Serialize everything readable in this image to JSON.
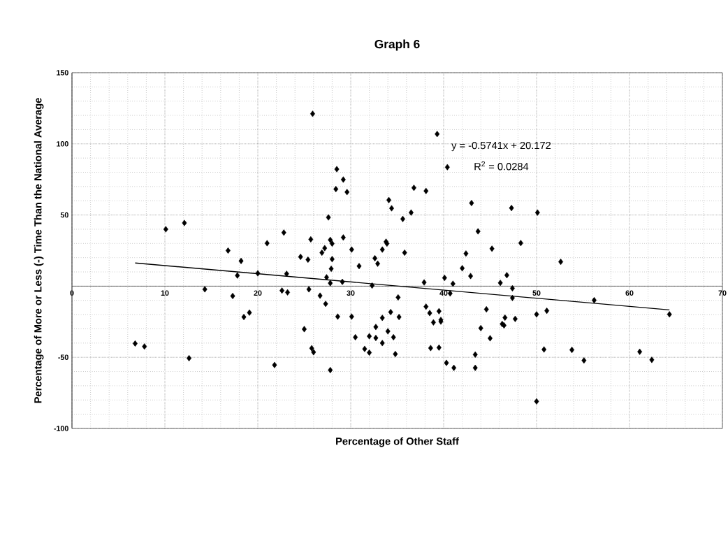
{
  "chart_data": {
    "type": "scatter",
    "title": "Graph 6",
    "xlabel": "Percentage of Other Staff",
    "ylabel": "Percentage of More or Less (-) Time Than the National Average",
    "annotations": [
      "y = -0.5741x + 20.172",
      "R$^{2}$ = 0.0284"
    ],
    "xlim": [
      0,
      70
    ],
    "ylim": [
      -100,
      150
    ],
    "xticks": [
      0,
      10,
      20,
      30,
      40,
      50,
      60,
      70
    ],
    "yticks": [
      -100,
      -50,
      {
        "value": 0,
        "label": null
      },
      50,
      100,
      150
    ],
    "grid": true,
    "series": [
      {
        "type": "scatter",
        "color": "#000000",
        "marker": "diamond",
        "x": [
          10.1,
          12.1,
          25.9,
          39.3,
          40.4,
          28.5,
          29.2,
          28.4,
          29.6,
          36.8,
          38.1,
          34.1,
          34.4,
          36.5,
          35.6,
          27.6,
          43.0,
          47.3,
          50.1,
          22.8,
          21.0,
          16.8,
          18.2,
          17.8,
          20.0,
          23.1,
          14.3,
          17.3,
          22.6,
          23.2,
          19.1,
          18.5,
          6.8,
          7.8,
          12.6,
          21.8,
          25.7,
          27.8,
          28.0,
          29.2,
          27.2,
          26.9,
          30.1,
          24.6,
          25.4,
          28.0,
          33.8,
          33.9,
          33.4,
          35.8,
          32.6,
          32.9,
          30.9,
          27.9,
          27.4,
          27.8,
          29.1,
          32.3,
          37.9,
          40.1,
          41.0,
          42.0,
          42.9,
          42.4,
          45.2,
          43.7,
          46.1,
          25.5,
          26.7,
          27.3,
          35.1,
          40.7,
          38.1,
          38.5,
          39.5,
          38.9,
          39.7,
          39.7,
          44.6,
          46.6,
          46.3,
          46.5,
          34.3,
          35.2,
          33.4,
          28.6,
          30.1,
          25.0,
          32.7,
          34.0,
          30.5,
          32.0,
          32.7,
          34.6,
          33.4,
          31.5,
          32.0,
          34.8,
          25.8,
          26.0,
          27.8,
          38.6,
          39.5,
          44.0,
          45.0,
          40.3,
          41.1,
          43.4,
          43.4,
          48.3,
          52.6,
          46.8,
          47.4,
          47.4,
          56.2,
          64.3,
          50.0,
          51.1,
          47.7,
          50.8,
          53.8,
          55.1,
          61.1,
          62.4,
          50.0
        ],
        "values": [
          40,
          44.4,
          121.1,
          106.9,
          83.6,
          82.2,
          74.9,
          68.2,
          66.1,
          69.1,
          66.9,
          60.5,
          54.7,
          51.7,
          47.2,
          48.3,
          58.4,
          54.9,
          51.7,
          37.6,
          30.2,
          25.0,
          17.7,
          7.5,
          9.0,
          8.7,
          -2.2,
          -6.9,
          -3.1,
          -4.4,
          -18.6,
          -21.7,
          -40.3,
          -42.4,
          -50.6,
          -55.4,
          32.9,
          32.5,
          29.9,
          34.2,
          26.7,
          23.5,
          25.7,
          20.6,
          18.6,
          19.0,
          31.2,
          29.9,
          25.7,
          23.5,
          19.6,
          15.8,
          14.1,
          12.2,
          6.2,
          2.1,
          3.0,
          0.4,
          2.6,
          5.8,
          1.7,
          12.6,
          7.1,
          22.9,
          26.3,
          38.5,
          2.3,
          -2.2,
          -6.7,
          -12.4,
          -7.9,
          -5.1,
          -14.4,
          -18.9,
          -17.6,
          -25.5,
          -23.7,
          -24.9,
          -16.3,
          -22.1,
          -26.6,
          -27.6,
          -18.2,
          -21.7,
          -22.3,
          -21.4,
          -21.4,
          -30.2,
          -28.7,
          -31.7,
          -35.9,
          -35.2,
          -36.4,
          -35.9,
          -40.0,
          -44.1,
          -46.7,
          -47.7,
          -43.6,
          -46.4,
          -59.0,
          -43.5,
          -43.2,
          -29.5,
          -36.6,
          -53.9,
          -57.4,
          -48.1,
          -57.4,
          30.3,
          17.1,
          7.7,
          -1.5,
          -8.3,
          -9.9,
          -19.8,
          -19.8,
          -17.3,
          -23.0,
          -44.5,
          -44.8,
          -52.2,
          -46.1,
          -51.8,
          -81
        ]
      },
      {
        "type": "line",
        "color": "#000000",
        "marker": "none",
        "x": [
          6.8,
          64.3
        ],
        "values": [
          16.3,
          -16.7
        ]
      }
    ]
  }
}
